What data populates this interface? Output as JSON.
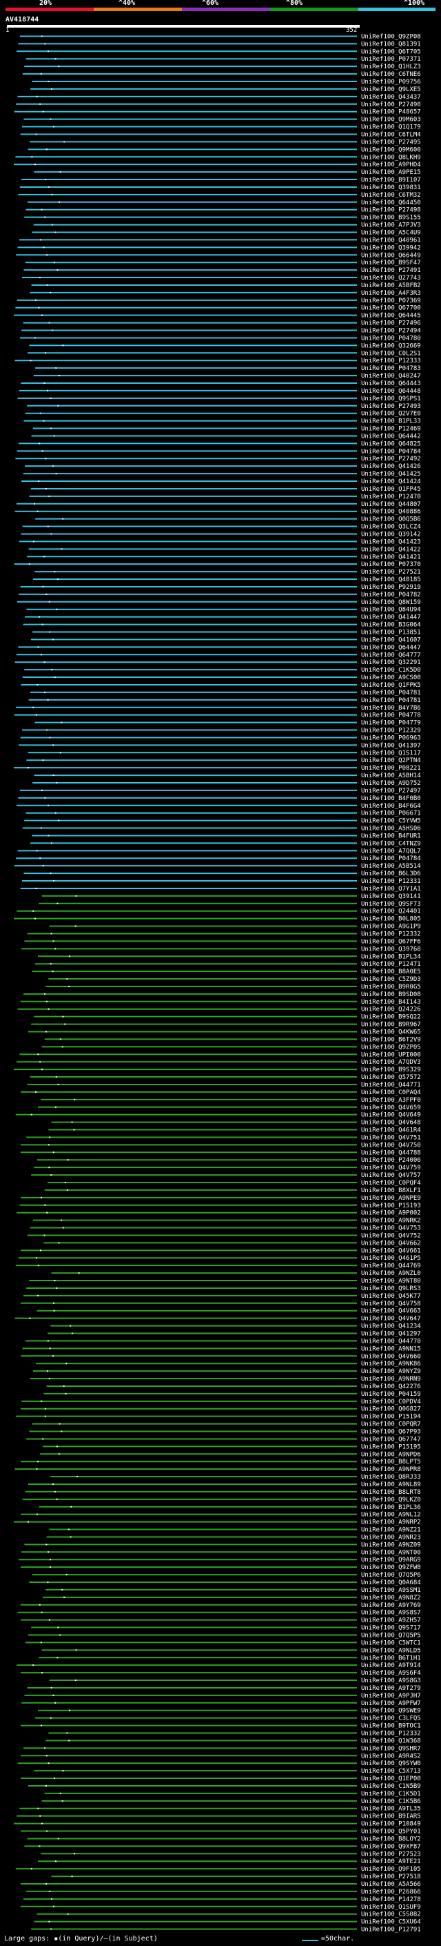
{
  "scale": {
    "labels": [
      "20%",
      "^40%",
      "^60%",
      "^80%",
      "^100%"
    ],
    "colors": [
      "#e8102a",
      "#ea7a12",
      "#8b2fb8",
      "#119a1b",
      "#35c1e0"
    ]
  },
  "query": {
    "name": "AV418744",
    "start_tick": "1",
    "end_tick": "352"
  },
  "hit_colors": {
    "high": "#35c1e0",
    "mid": "#2fa51f",
    "match_dot": "#ffffff"
  },
  "hits": [
    "UniRef100_Q9ZP08",
    "UniRef100_Q81391",
    "UniRef100_Q6T705",
    "UniRef100_P07371",
    "UniRef100_Q1HLZ3",
    "UniRef100_C6TNE6",
    "UniRef100_P09756",
    "UniRef100_Q9LXE5",
    "UniRef100_Q43437",
    "UniRef100_P27490",
    "UniRef100_P48657",
    "UniRef100_Q9M603",
    "UniRef100_Q1Q179",
    "UniRef100_C6TLM4",
    "UniRef100_P27495",
    "UniRef100_Q9M600",
    "UniRef100_Q8LKH9",
    "UniRef100_A9PHD4",
    "UniRef100_A9PE15",
    "UniRef100_B9I107",
    "UniRef100_Q39831",
    "UniRef100_C6TM32",
    "UniRef100_Q64450",
    "UniRef100_P27498",
    "UniRef100_B9S155",
    "UniRef100_A7PJV3",
    "UniRef100_A5C4U9",
    "UniRef100_Q40961",
    "UniRef100_Q39942",
    "UniRef100_Q66449",
    "UniRef100_B9SF47",
    "UniRef100_P27491",
    "UniRef100_Q27743",
    "UniRef100_A5BFB2",
    "UniRef100_A4F3R3",
    "UniRef100_P07369",
    "UniRef100_Q67700",
    "UniRef100_Q64445",
    "UniRef100_P27496",
    "UniRef100_P27494",
    "UniRef100_P04780",
    "UniRef100_Q32669",
    "UniRef100_C0L2S1",
    "UniRef100_P12333",
    "UniRef100_P04783",
    "UniRef100_Q40247",
    "UniRef100_Q64443",
    "UniRef100_Q64448",
    "UniRef100_Q9SPS1",
    "UniRef100_P27493",
    "UniRef100_Q2V7E0",
    "UniRef100_B1PL33",
    "UniRef100_P12469",
    "UniRef100_Q64442",
    "UniRef100_Q64825",
    "UniRef100_P04784",
    "UniRef100_P27492",
    "UniRef100_Q41426",
    "UniRef100_Q41425",
    "UniRef100_Q41424",
    "UniRef100_Q1FP45",
    "UniRef100_P12470",
    "UniRef100_Q44807",
    "UniRef100_Q40886",
    "UniRef100_Q0Q5B6",
    "UniRef100_Q3LCZ4",
    "UniRef100_Q39142",
    "UniRef100_Q41423",
    "UniRef100_Q41422",
    "UniRef100_Q41421",
    "UniRef100_P07370",
    "UniRef100_P27521",
    "UniRef100_Q40185",
    "UniRef100_P92919",
    "UniRef100_P04782",
    "UniRef100_Q8W159",
    "UniRef100_Q84U94",
    "UniRef100_Q41447",
    "UniRef100_B3G064",
    "UniRef100_P13851",
    "UniRef100_Q41607",
    "UniRef100_Q64447",
    "UniRef100_Q64777",
    "UniRef100_Q32291",
    "UniRef100_C1K5D0",
    "UniRef100_A9CS00",
    "UniRef100_Q1FPK5",
    "UniRef100_P04781",
    "UniRef100_P04781",
    "UniRef100_B4Y7B6",
    "UniRef100_P04778",
    "UniRef100_P04779",
    "UniRef100_P12329",
    "UniRef100_P06963",
    "UniRef100_Q41397",
    "UniRef100_Q1S117",
    "UniRef100_Q2PTN4",
    "UniRef100_P08221",
    "UniRef100_A5BH14",
    "UniRef100_A9D752",
    "UniRef100_P27497",
    "UniRef100_B4F0B0",
    "UniRef100_B4F6G4",
    "UniRef100_P06671",
    "UniRef100_C5YVW5",
    "UniRef100_A5HS06",
    "UniRef100_B4FUR1",
    "UniRef100_C4TNZ9",
    "UniRef100_A7QQL7",
    "UniRef100_P04784",
    "UniRef100_A5B514",
    "UniRef100_B6L3D6",
    "UniRef100_P12331",
    "UniRef100_Q7Y1A1",
    "UniRef100_Q39141",
    "UniRef100_Q9SF73",
    "UniRef100_Q24401",
    "UniRef100_B0L805",
    "UniRef100_A9G1P9",
    "UniRef100_P12332",
    "UniRef100_Q67FF6",
    "UniRef100_Q39768",
    "UniRef100_B1PL34",
    "UniRef100_P12471",
    "UniRef100_B8A0E5",
    "UniRef100_C5Z9D3",
    "UniRef100_B9R0G5",
    "UniRef100_B9SD08",
    "UniRef100_B4I143",
    "UniRef100_Q24226",
    "UniRef100_B9SQ22",
    "UniRef100_B9R967",
    "UniRef100_Q4KW65",
    "UniRef100_B6T2V9",
    "UniRef100_Q9ZP05",
    "UniRef100_UPI000",
    "UniRef100_A7QDV3",
    "UniRef100_B9S329",
    "UniRef100_Q57572",
    "UniRef100_Q44771",
    "UniRef100_C0PAQ4",
    "UniRef100_A3FPF0",
    "UniRef100_Q4V659",
    "UniRef100_Q4V649",
    "UniRef100_Q4V648",
    "UniRef100_Q461R4",
    "UniRef100_Q4V751",
    "UniRef100_Q4V750",
    "UniRef100_Q44788",
    "UniRef100_P24006",
    "UniRef100_Q4V759",
    "UniRef100_Q4V757",
    "UniRef100_C0PQF4",
    "UniRef100_B8XLF1",
    "UniRef100_A9NPE9",
    "UniRef100_P15193",
    "UniRef100_A9P002",
    "UniRef100_A9NRK2",
    "UniRef100_Q4V753",
    "UniRef100_Q4V752",
    "UniRef100_Q4V662",
    "UniRef100_Q4V661",
    "UniRef100_Q461P5",
    "UniRef100_Q44769",
    "UniRef100_A9NZL0",
    "UniRef100_A9NT80",
    "UniRef100_Q9LRS3",
    "UniRef100_Q45K77",
    "UniRef100_Q4V758",
    "UniRef100_Q4V663",
    "UniRef100_Q4V647",
    "UniRef100_Q41234",
    "UniRef100_Q41297",
    "UniRef100_Q44770",
    "UniRef100_A9NN15",
    "UniRef100_Q4V660",
    "UniRef100_A9NK86",
    "UniRef100_A9NYZ9",
    "UniRef100_A9NRN9",
    "UniRef100_Q42276",
    "UniRef100_P04159",
    "UniRef100_C0PDV4",
    "UniRef100_Q06827",
    "UniRef100_P15194",
    "UniRef100_C0PQR7",
    "UniRef100_Q67P93",
    "UniRef100_Q67747",
    "UniRef100_P15195",
    "UniRef100_A9NPD6",
    "UniRef100_B8LPT5",
    "UniRef100_A9NPR8",
    "UniRef100_Q8RJ33",
    "UniRef100_A9NL89",
    "UniRef100_B8LRT8",
    "UniRef100_Q9LKZ0",
    "UniRef100_B1PL36",
    "UniRef100_A9NL12",
    "UniRef100_A9NRP2",
    "UniRef100_A9NZ21",
    "UniRef100_A9NR23",
    "UniRef100_A9NZ09",
    "UniRef100_A9NT00",
    "UniRef100_Q9ARG9",
    "UniRef100_Q9ZFW8",
    "UniRef100_Q7Q5P6",
    "UniRef100_Q0A684",
    "UniRef100_A9SSM1",
    "UniRef100_A9N8Z2",
    "UniRef100_A9Y769",
    "UniRef100_A9S8S7",
    "UniRef100_A9ZH57",
    "UniRef100_Q9S717",
    "UniRef100_Q7Q5P5",
    "UniRef100_C5WTC1",
    "UniRef100_A9NLD5",
    "UniRef100_B6T1H1",
    "UniRef100_A9T9I4",
    "UniRef100_A9S6F4",
    "UniRef100_A9S8G3",
    "UniRef100_A9T279",
    "UniRef100_A9PJH7",
    "UniRef100_A9PFW7",
    "UniRef100_Q9SWE9",
    "UniRef100_C3LFQ5",
    "UniRef100_B9TOC1",
    "UniRef100_P12332",
    "UniRef100_Q1W368",
    "UniRef100_Q9SHR7",
    "UniRef100_A9R4S2",
    "UniRef100_Q9SYW0",
    "UniRef100_C5X713",
    "UniRef100_Q1EP00",
    "UniRef100_C1N5B9",
    "UniRef100_C1K5D1",
    "UniRef100_C1K5B6",
    "UniRef100_A9TL35",
    "UniRef100_B9IAR5",
    "UniRef100_P10849",
    "UniRef100_Q5PY01",
    "UniRef100_B8LOY2",
    "UniRef100_Q9XF87",
    "UniRef100_P27523",
    "UniRef100_A9TE21",
    "UniRef100_Q9F105",
    "UniRef100_P27518",
    "UniRef100_A5A566",
    "UniRef100_P26866",
    "UniRef100_P14278",
    "UniRef100_Q1SUF9",
    "UniRef100_C5S082",
    "UniRef100_C5XU64",
    "UniRef100_P12791"
  ],
  "legend": {
    "large_gaps": "Large gaps: ▪(in Query)/—(in Subject)",
    "scale_note": "=50char."
  }
}
